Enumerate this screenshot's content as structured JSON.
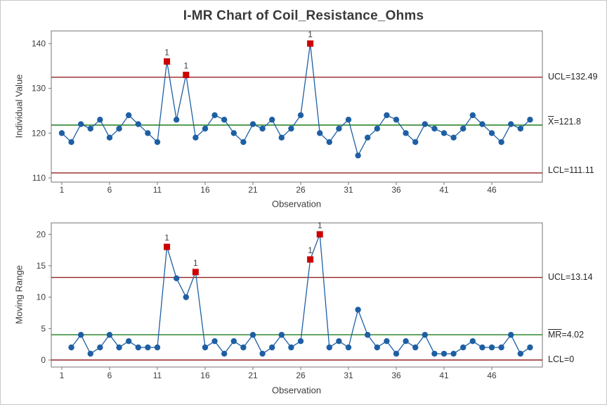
{
  "title": "I-MR Chart of Coil_Resistance_Ohms",
  "colors": {
    "series_blue": "#1e5fa4",
    "limit_line_red": "#942323",
    "center_line_green": "#1d7d1d",
    "out_of_control_red": "#cc0000",
    "text_dark": "#3d3d3d",
    "frame_gray": "#767676"
  },
  "chart_data": [
    {
      "type": "line",
      "name": "individuals-chart",
      "ylabel": "Individual Value",
      "xlabel": "Observation",
      "x_start": 1,
      "values": [
        120,
        118,
        122,
        121,
        123,
        119,
        121,
        124,
        122,
        120,
        118,
        136,
        123,
        133,
        119,
        121,
        124,
        123,
        120,
        118,
        122,
        121,
        123,
        119,
        121,
        124,
        140,
        120,
        118,
        121,
        123,
        115,
        119,
        121,
        124,
        123,
        120,
        118,
        122,
        121,
        120,
        119,
        121,
        124,
        122,
        120,
        118,
        122,
        121,
        123
      ],
      "center": 121.8,
      "ucl": 132.49,
      "lcl": 111.11,
      "limit_labels": {
        "ucl": "UCL=132.49",
        "center_overlined": "X",
        "center_suffix": "=121.8",
        "lcl": "LCL=111.11"
      },
      "yticks": [
        110,
        120,
        130,
        140
      ],
      "xticks": [
        1,
        6,
        11,
        16,
        21,
        26,
        31,
        36,
        41,
        46
      ],
      "ylim": [
        109.06,
        142.82
      ],
      "xlim": [
        -0.1,
        51.29
      ],
      "out_of_control": [
        12,
        14,
        27
      ],
      "ooc_label": "1",
      "grid": false,
      "legend": false
    },
    {
      "type": "line",
      "name": "moving-range-chart",
      "ylabel": "Moving Range",
      "xlabel": "Observation",
      "x_start": 2,
      "values": [
        2,
        4,
        1,
        2,
        4,
        2,
        3,
        2,
        2,
        2,
        18,
        13,
        10,
        14,
        2,
        3,
        1,
        3,
        2,
        4,
        1,
        2,
        4,
        2,
        3,
        16,
        20,
        2,
        3,
        2,
        8,
        4,
        2,
        3,
        1,
        3,
        2,
        4,
        1,
        1,
        1,
        2,
        3,
        2,
        2,
        2,
        4,
        1,
        2
      ],
      "center": 4.02,
      "ucl": 13.14,
      "lcl": 0,
      "limit_labels": {
        "ucl": "UCL=13.14",
        "center_overlined": "MR",
        "center_suffix": "=4.02",
        "lcl": "LCL=0"
      },
      "yticks": [
        0,
        5,
        10,
        15,
        20
      ],
      "xticks": [
        1,
        6,
        11,
        16,
        21,
        26,
        31,
        36,
        41,
        46
      ],
      "ylim": [
        -1.12,
        21.82
      ],
      "xlim": [
        -0.1,
        51.29
      ],
      "out_of_control": [
        12,
        15,
        27,
        28
      ],
      "ooc_label": "1",
      "grid": false,
      "legend": false
    }
  ]
}
